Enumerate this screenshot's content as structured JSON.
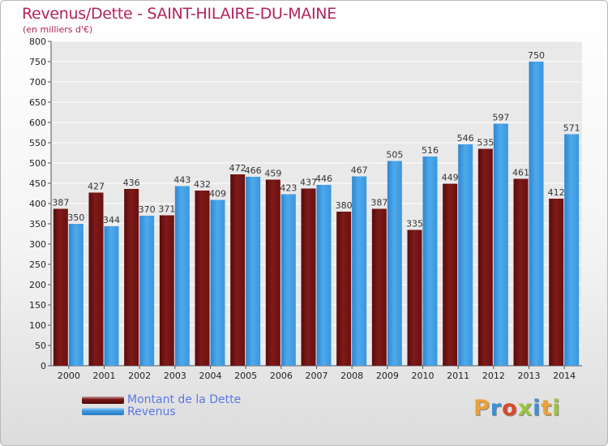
{
  "title": "Revenus/Dette - SAINT-HILAIRE-DU-MAINE",
  "subtitle": "(en milliers d'€)",
  "logo": "Proxiti",
  "colors": {
    "dette": "#7a1616",
    "revenus": "#3d9be0",
    "title": "#b2235a",
    "legend_text": "#5a78e6"
  },
  "chart_data": {
    "type": "bar",
    "categories": [
      "2000",
      "2001",
      "2002",
      "2003",
      "2004",
      "2005",
      "2006",
      "2007",
      "2008",
      "2009",
      "2010",
      "2011",
      "2012",
      "2013",
      "2014"
    ],
    "series": [
      {
        "name": "Montant de la Dette",
        "values": [
          387,
          427,
          436,
          371,
          432,
          472,
          459,
          437,
          380,
          387,
          335,
          449,
          535,
          461,
          412
        ]
      },
      {
        "name": "Revenus",
        "values": [
          350,
          344,
          370,
          443,
          409,
          466,
          423,
          446,
          467,
          505,
          516,
          546,
          597,
          750,
          571
        ]
      }
    ],
    "title": "Revenus/Dette - SAINT-HILAIRE-DU-MAINE",
    "ylabel": "(en milliers d'€)",
    "ylim": [
      0,
      800
    ],
    "yticks": [
      0,
      50,
      100,
      150,
      200,
      250,
      300,
      350,
      400,
      450,
      500,
      550,
      600,
      650,
      700,
      750,
      800
    ],
    "grid": true,
    "legend": "bottom-left"
  }
}
